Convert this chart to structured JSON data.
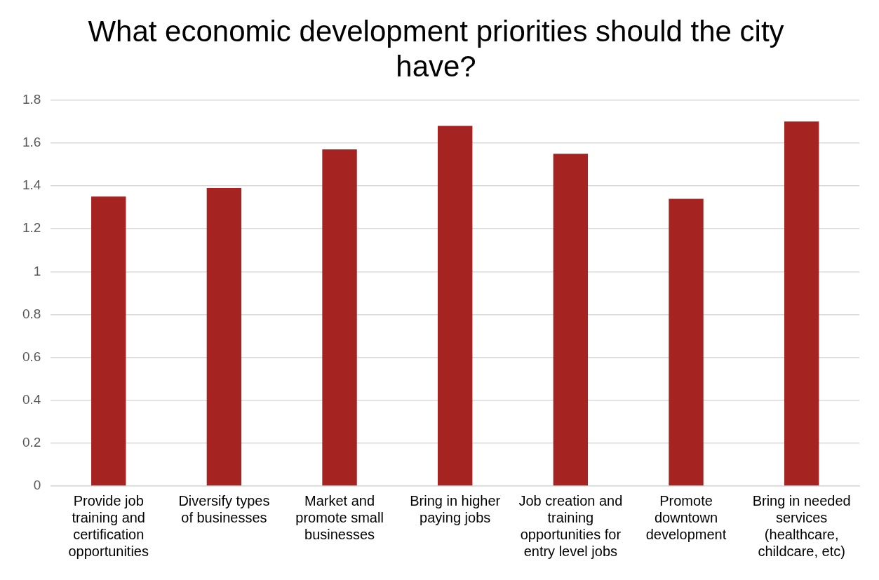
{
  "chart_data": {
    "type": "bar",
    "title": "What economic development priorities should the city have?",
    "categories": [
      "Provide job training and certification opportunities",
      "Diversify types of businesses",
      "Market and promote small businesses",
      "Bring in higher paying jobs",
      "Job creation and training opportunities for entry level jobs",
      "Promote downtown development",
      "Bring in needed services (healthcare, childcare, etc)"
    ],
    "values": [
      1.35,
      1.39,
      1.57,
      1.68,
      1.55,
      1.34,
      1.7
    ],
    "color": "#a52422",
    "ylim": [
      0,
      1.8
    ],
    "yticks": [
      0,
      0.2,
      0.4,
      0.6,
      0.8,
      1,
      1.2,
      1.4,
      1.6,
      1.8
    ],
    "grid": "y",
    "legend": false
  }
}
